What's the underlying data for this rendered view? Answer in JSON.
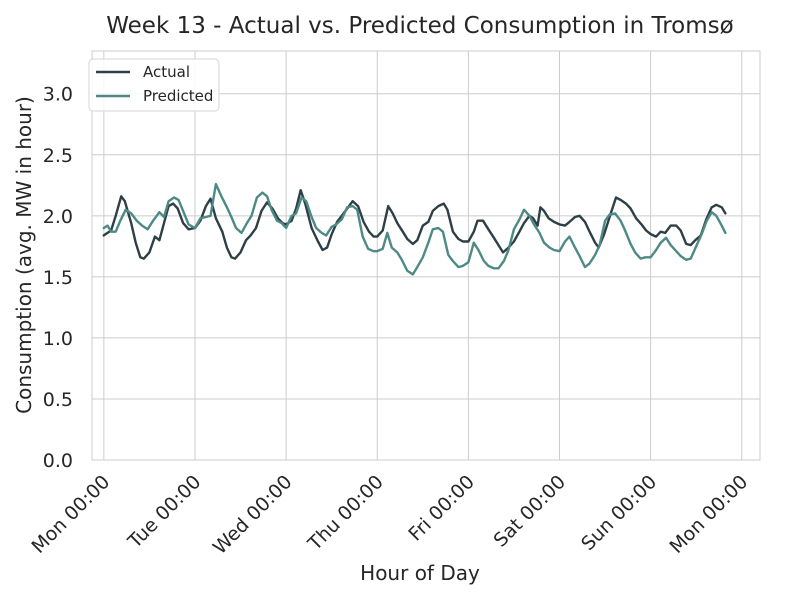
{
  "chart_data": {
    "type": "line",
    "title": "Week 13 - Actual vs. Predicted Consumption in Tromsø",
    "xlabel": "Hour of Day",
    "ylabel": "Consumption (avg. MW in hour)",
    "ylim": [
      0,
      3.35
    ],
    "xlim": [
      -0.13,
      7.2
    ],
    "grid": true,
    "legend_position": "top-left",
    "x_ticks": [
      0,
      1,
      2,
      3,
      4,
      5,
      6,
      7
    ],
    "x_tick_labels": [
      "Mon 00:00",
      "Tue 00:00",
      "Wed 00:00",
      "Thu 00:00",
      "Fri 00:00",
      "Sat 00:00",
      "Sun 00:00",
      "Mon 00:00"
    ],
    "y_ticks": [
      0.0,
      0.5,
      1.0,
      1.5,
      2.0,
      2.5,
      3.0
    ],
    "y_tick_labels": [
      "0.0",
      "0.5",
      "1.0",
      "1.5",
      "2.0",
      "2.5",
      "3.0"
    ],
    "x_unit": "days since Monday 00:00",
    "series": [
      {
        "name": "Actual",
        "color": "#2f3f47",
        "points": [
          [
            0.0,
            1.84
          ],
          [
            0.04,
            1.86
          ],
          [
            0.08,
            1.88
          ],
          [
            0.13,
            2.0
          ],
          [
            0.19,
            2.16
          ],
          [
            0.23,
            2.12
          ],
          [
            0.3,
            1.94
          ],
          [
            0.35,
            1.78
          ],
          [
            0.4,
            1.66
          ],
          [
            0.44,
            1.65
          ],
          [
            0.5,
            1.7
          ],
          [
            0.56,
            1.83
          ],
          [
            0.61,
            1.8
          ],
          [
            0.66,
            1.94
          ],
          [
            0.71,
            2.08
          ],
          [
            0.76,
            2.1
          ],
          [
            0.81,
            2.06
          ],
          [
            0.87,
            1.94
          ],
          [
            0.93,
            1.89
          ],
          [
            1.0,
            1.9
          ],
          [
            1.06,
            1.96
          ],
          [
            1.12,
            2.08
          ],
          [
            1.17,
            2.14
          ],
          [
            1.23,
            1.98
          ],
          [
            1.3,
            1.87
          ],
          [
            1.35,
            1.74
          ],
          [
            1.4,
            1.66
          ],
          [
            1.44,
            1.65
          ],
          [
            1.5,
            1.7
          ],
          [
            1.56,
            1.8
          ],
          [
            1.61,
            1.84
          ],
          [
            1.67,
            1.9
          ],
          [
            1.73,
            2.04
          ],
          [
            1.79,
            2.11
          ],
          [
            1.85,
            2.06
          ],
          [
            1.91,
            1.98
          ],
          [
            1.96,
            1.94
          ],
          [
            2.0,
            1.93
          ],
          [
            2.06,
            1.96
          ],
          [
            2.11,
            2.06
          ],
          [
            2.16,
            2.21
          ],
          [
            2.21,
            2.1
          ],
          [
            2.28,
            1.9
          ],
          [
            2.35,
            1.79
          ],
          [
            2.4,
            1.72
          ],
          [
            2.45,
            1.74
          ],
          [
            2.5,
            1.85
          ],
          [
            2.56,
            1.95
          ],
          [
            2.61,
            2.0
          ],
          [
            2.67,
            2.06
          ],
          [
            2.73,
            2.12
          ],
          [
            2.79,
            2.08
          ],
          [
            2.85,
            1.95
          ],
          [
            2.91,
            1.87
          ],
          [
            2.96,
            1.83
          ],
          [
            3.0,
            1.83
          ],
          [
            3.06,
            1.88
          ],
          [
            3.12,
            2.08
          ],
          [
            3.17,
            2.02
          ],
          [
            3.22,
            1.94
          ],
          [
            3.28,
            1.87
          ],
          [
            3.33,
            1.81
          ],
          [
            3.39,
            1.77
          ],
          [
            3.44,
            1.8
          ],
          [
            3.5,
            1.92
          ],
          [
            3.56,
            1.95
          ],
          [
            3.61,
            2.04
          ],
          [
            3.67,
            2.08
          ],
          [
            3.73,
            2.1
          ],
          [
            3.77,
            2.05
          ],
          [
            3.83,
            1.87
          ],
          [
            3.89,
            1.81
          ],
          [
            3.94,
            1.79
          ],
          [
            4.0,
            1.79
          ],
          [
            4.06,
            1.87
          ],
          [
            4.1,
            1.96
          ],
          [
            4.16,
            1.96
          ],
          [
            4.22,
            1.89
          ],
          [
            4.28,
            1.82
          ],
          [
            4.33,
            1.76
          ],
          [
            4.38,
            1.7
          ],
          [
            4.44,
            1.74
          ],
          [
            4.5,
            1.79
          ],
          [
            4.56,
            1.87
          ],
          [
            4.61,
            1.94
          ],
          [
            4.67,
            2.0
          ],
          [
            4.71,
            1.98
          ],
          [
            4.76,
            1.92
          ],
          [
            4.79,
            2.07
          ],
          [
            4.83,
            2.04
          ],
          [
            4.88,
            1.98
          ],
          [
            4.94,
            1.95
          ],
          [
            5.0,
            1.93
          ],
          [
            5.06,
            1.92
          ],
          [
            5.11,
            1.95
          ],
          [
            5.17,
            1.99
          ],
          [
            5.22,
            2.0
          ],
          [
            5.28,
            1.95
          ],
          [
            5.33,
            1.87
          ],
          [
            5.39,
            1.78
          ],
          [
            5.43,
            1.74
          ],
          [
            5.49,
            1.85
          ],
          [
            5.55,
            1.99
          ],
          [
            5.62,
            2.15
          ],
          [
            5.67,
            2.13
          ],
          [
            5.73,
            2.1
          ],
          [
            5.78,
            2.06
          ],
          [
            5.84,
            1.98
          ],
          [
            5.9,
            1.93
          ],
          [
            5.95,
            1.88
          ],
          [
            6.0,
            1.85
          ],
          [
            6.06,
            1.83
          ],
          [
            6.11,
            1.87
          ],
          [
            6.16,
            1.86
          ],
          [
            6.22,
            1.92
          ],
          [
            6.28,
            1.92
          ],
          [
            6.33,
            1.88
          ],
          [
            6.39,
            1.77
          ],
          [
            6.44,
            1.76
          ],
          [
            6.49,
            1.8
          ],
          [
            6.55,
            1.84
          ],
          [
            6.61,
            1.97
          ],
          [
            6.67,
            2.07
          ],
          [
            6.72,
            2.09
          ],
          [
            6.78,
            2.07
          ],
          [
            6.82,
            2.02
          ]
        ]
      },
      {
        "name": "Predicted",
        "color": "#4e8a85",
        "points": [
          [
            0.0,
            1.9
          ],
          [
            0.04,
            1.92
          ],
          [
            0.08,
            1.87
          ],
          [
            0.13,
            1.87
          ],
          [
            0.18,
            1.96
          ],
          [
            0.24,
            2.05
          ],
          [
            0.3,
            2.02
          ],
          [
            0.36,
            1.96
          ],
          [
            0.42,
            1.92
          ],
          [
            0.48,
            1.89
          ],
          [
            0.54,
            1.96
          ],
          [
            0.61,
            2.03
          ],
          [
            0.66,
            1.99
          ],
          [
            0.71,
            2.12
          ],
          [
            0.77,
            2.15
          ],
          [
            0.82,
            2.13
          ],
          [
            0.87,
            2.04
          ],
          [
            0.93,
            1.93
          ],
          [
            1.0,
            1.9
          ],
          [
            1.06,
            1.98
          ],
          [
            1.12,
            1.99
          ],
          [
            1.17,
            2.0
          ],
          [
            1.23,
            2.26
          ],
          [
            1.29,
            2.16
          ],
          [
            1.35,
            2.07
          ],
          [
            1.4,
            1.99
          ],
          [
            1.45,
            1.9
          ],
          [
            1.51,
            1.86
          ],
          [
            1.57,
            1.94
          ],
          [
            1.62,
            2.0
          ],
          [
            1.68,
            2.15
          ],
          [
            1.74,
            2.19
          ],
          [
            1.79,
            2.16
          ],
          [
            1.84,
            2.05
          ],
          [
            1.9,
            1.96
          ],
          [
            1.95,
            1.94
          ],
          [
            2.0,
            1.9
          ],
          [
            2.06,
            2.0
          ],
          [
            2.11,
            2.02
          ],
          [
            2.17,
            2.15
          ],
          [
            2.22,
            2.12
          ],
          [
            2.28,
            1.99
          ],
          [
            2.33,
            1.9
          ],
          [
            2.39,
            1.86
          ],
          [
            2.44,
            1.84
          ],
          [
            2.5,
            1.91
          ],
          [
            2.55,
            1.93
          ],
          [
            2.61,
            1.97
          ],
          [
            2.67,
            2.07
          ],
          [
            2.73,
            2.08
          ],
          [
            2.78,
            2.05
          ],
          [
            2.84,
            1.83
          ],
          [
            2.9,
            1.73
          ],
          [
            2.96,
            1.71
          ],
          [
            3.0,
            1.71
          ],
          [
            3.06,
            1.73
          ],
          [
            3.11,
            1.86
          ],
          [
            3.16,
            1.74
          ],
          [
            3.22,
            1.7
          ],
          [
            3.27,
            1.64
          ],
          [
            3.33,
            1.55
          ],
          [
            3.39,
            1.52
          ],
          [
            3.44,
            1.58
          ],
          [
            3.5,
            1.66
          ],
          [
            3.56,
            1.78
          ],
          [
            3.61,
            1.89
          ],
          [
            3.67,
            1.9
          ],
          [
            3.72,
            1.87
          ],
          [
            3.78,
            1.68
          ],
          [
            3.83,
            1.63
          ],
          [
            3.89,
            1.58
          ],
          [
            3.94,
            1.59
          ],
          [
            4.0,
            1.62
          ],
          [
            4.06,
            1.78
          ],
          [
            4.11,
            1.72
          ],
          [
            4.17,
            1.63
          ],
          [
            4.22,
            1.59
          ],
          [
            4.28,
            1.57
          ],
          [
            4.33,
            1.57
          ],
          [
            4.39,
            1.63
          ],
          [
            4.44,
            1.72
          ],
          [
            4.5,
            1.89
          ],
          [
            4.56,
            1.97
          ],
          [
            4.61,
            2.05
          ],
          [
            4.67,
            2.0
          ],
          [
            4.72,
            1.93
          ],
          [
            4.78,
            1.86
          ],
          [
            4.83,
            1.78
          ],
          [
            4.89,
            1.74
          ],
          [
            4.94,
            1.72
          ],
          [
            5.0,
            1.71
          ],
          [
            5.06,
            1.79
          ],
          [
            5.11,
            1.83
          ],
          [
            5.17,
            1.74
          ],
          [
            5.22,
            1.67
          ],
          [
            5.28,
            1.58
          ],
          [
            5.33,
            1.61
          ],
          [
            5.39,
            1.68
          ],
          [
            5.44,
            1.76
          ],
          [
            5.5,
            1.96
          ],
          [
            5.55,
            2.01
          ],
          [
            5.61,
            2.02
          ],
          [
            5.67,
            1.96
          ],
          [
            5.72,
            1.88
          ],
          [
            5.78,
            1.77
          ],
          [
            5.83,
            1.7
          ],
          [
            5.89,
            1.65
          ],
          [
            5.94,
            1.66
          ],
          [
            6.0,
            1.66
          ],
          [
            6.06,
            1.72
          ],
          [
            6.11,
            1.78
          ],
          [
            6.17,
            1.82
          ],
          [
            6.22,
            1.76
          ],
          [
            6.28,
            1.71
          ],
          [
            6.33,
            1.67
          ],
          [
            6.39,
            1.64
          ],
          [
            6.44,
            1.65
          ],
          [
            6.5,
            1.75
          ],
          [
            6.56,
            1.85
          ],
          [
            6.61,
            1.95
          ],
          [
            6.67,
            2.03
          ],
          [
            6.72,
            2.0
          ],
          [
            6.78,
            1.92
          ],
          [
            6.82,
            1.86
          ]
        ]
      }
    ]
  }
}
